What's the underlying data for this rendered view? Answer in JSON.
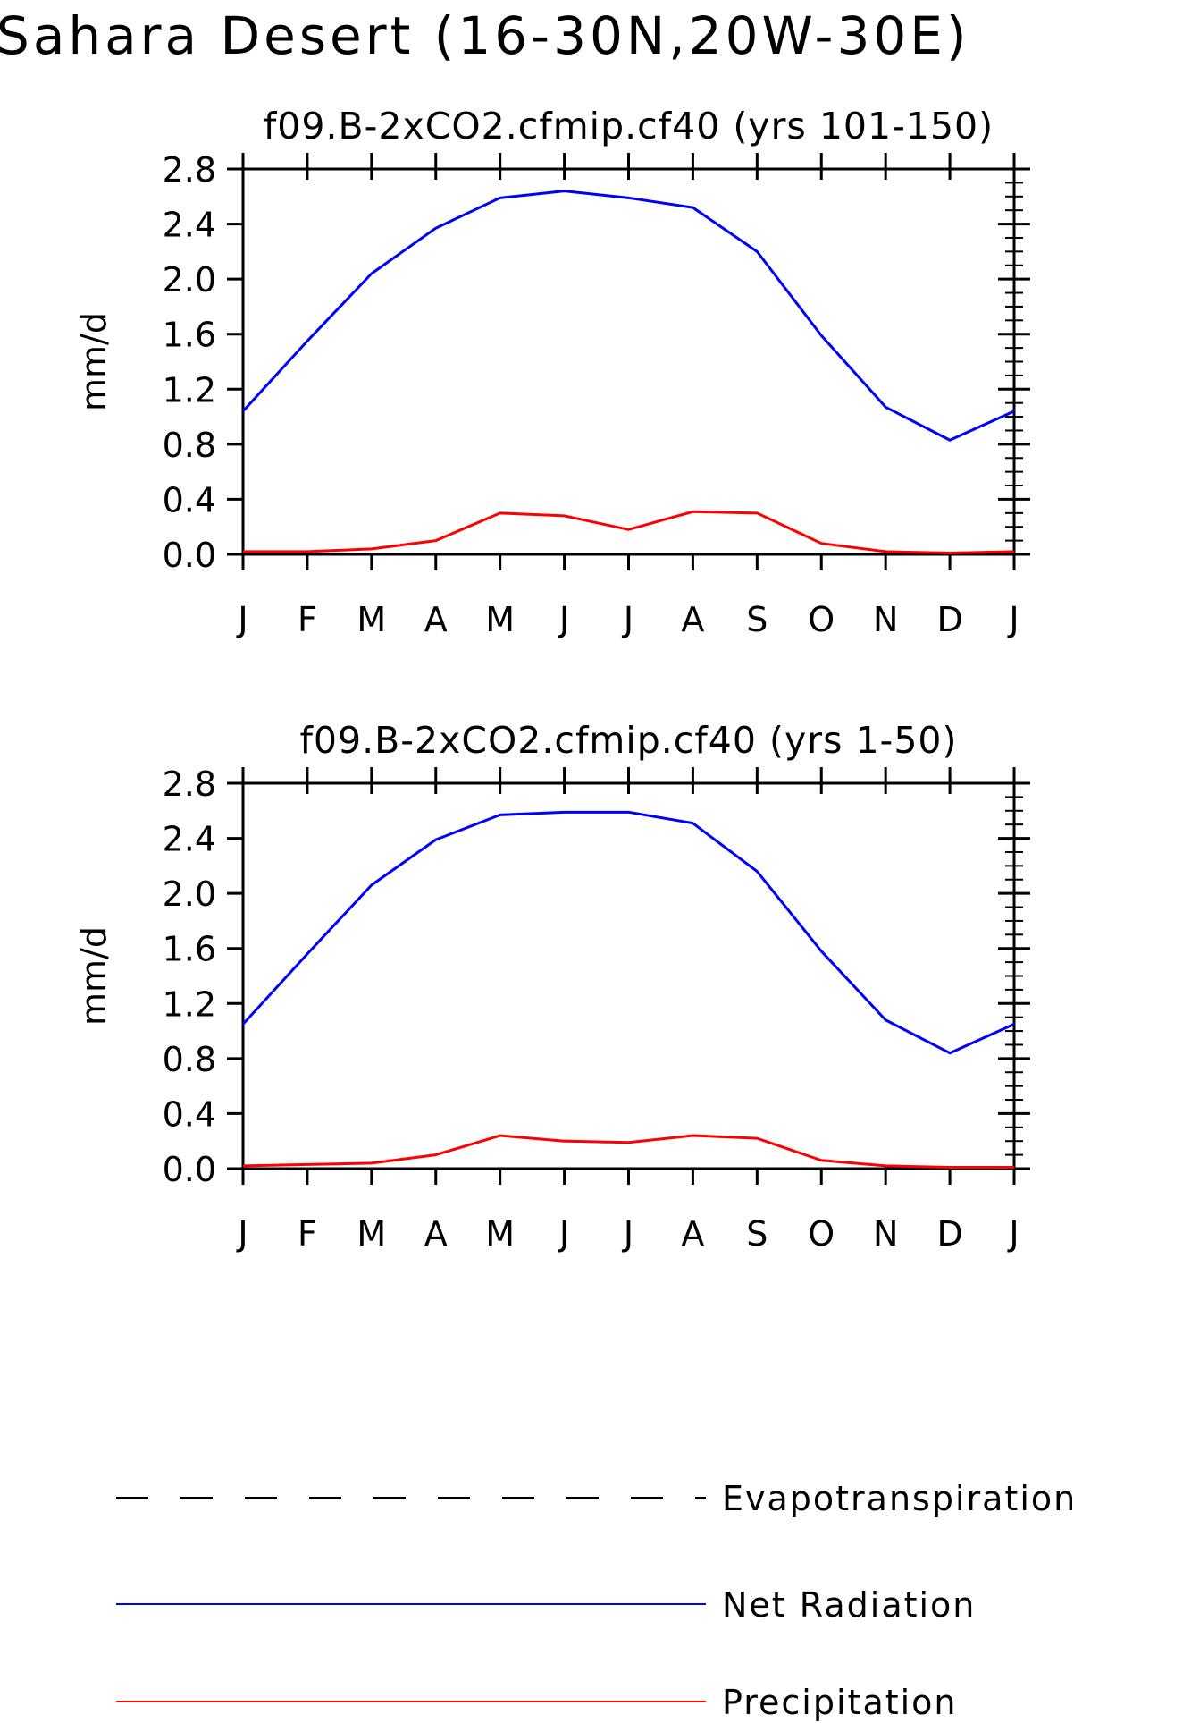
{
  "title": "Sahara Desert (16-30N,20W-30E)",
  "colors": {
    "evapotranspiration": "#000000",
    "net_radiation": "#0000ff",
    "precipitation": "#ff0000",
    "axes": "#000000",
    "background": "#ffffff"
  },
  "chart_data": [
    {
      "type": "line",
      "title": "f09.B-2xCO2.cfmip.cf40 (yrs 101-150)",
      "xlabel": "",
      "ylabel": "mm/d",
      "categories": [
        "J",
        "F",
        "M",
        "A",
        "M",
        "J",
        "J",
        "A",
        "S",
        "O",
        "N",
        "D",
        "J"
      ],
      "ylim": [
        0.0,
        2.8
      ],
      "yticks": [
        "0.0",
        "0.4",
        "0.8",
        "1.2",
        "1.6",
        "2.0",
        "2.4",
        "2.8"
      ],
      "grid": false,
      "series": [
        {
          "name": "Net Radiation",
          "color": "#0000ff",
          "values": [
            1.04,
            1.55,
            2.04,
            2.37,
            2.59,
            2.64,
            2.59,
            2.52,
            2.2,
            1.59,
            1.07,
            0.83,
            1.04
          ]
        },
        {
          "name": "Precipitation",
          "color": "#ff0000",
          "values": [
            0.02,
            0.02,
            0.04,
            0.1,
            0.3,
            0.28,
            0.18,
            0.31,
            0.3,
            0.08,
            0.02,
            0.01,
            0.02
          ]
        }
      ]
    },
    {
      "type": "line",
      "title": "f09.B-2xCO2.cfmip.cf40 (yrs 1-50)",
      "xlabel": "",
      "ylabel": "mm/d",
      "categories": [
        "J",
        "F",
        "M",
        "A",
        "M",
        "J",
        "J",
        "A",
        "S",
        "O",
        "N",
        "D",
        "J"
      ],
      "ylim": [
        0.0,
        2.8
      ],
      "yticks": [
        "0.0",
        "0.4",
        "0.8",
        "1.2",
        "1.6",
        "2.0",
        "2.4",
        "2.8"
      ],
      "grid": false,
      "series": [
        {
          "name": "Net Radiation",
          "color": "#0000ff",
          "values": [
            1.05,
            1.56,
            2.06,
            2.39,
            2.57,
            2.59,
            2.59,
            2.51,
            2.16,
            1.58,
            1.08,
            0.84,
            1.05
          ]
        },
        {
          "name": "Precipitation",
          "color": "#ff0000",
          "values": [
            0.02,
            0.03,
            0.04,
            0.1,
            0.24,
            0.2,
            0.19,
            0.24,
            0.22,
            0.06,
            0.02,
            0.01,
            0.01
          ]
        }
      ]
    }
  ],
  "legend": {
    "placement": "bottom",
    "entries": [
      {
        "label": "Evapotranspiration",
        "style": "dashed",
        "color": "#000000"
      },
      {
        "label": "Net Radiation",
        "style": "solid",
        "color": "#0000ff"
      },
      {
        "label": "Precipitation",
        "style": "solid",
        "color": "#ff0000"
      }
    ]
  }
}
